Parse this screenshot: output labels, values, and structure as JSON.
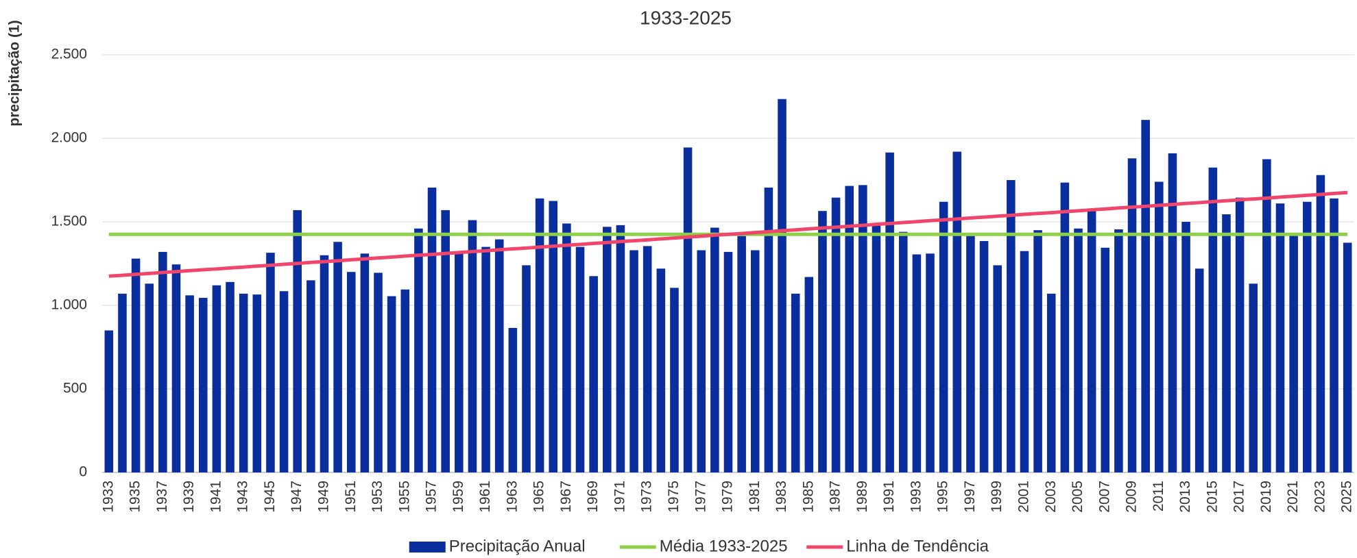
{
  "chart_data": {
    "type": "bar",
    "subtitle": "1933-2025",
    "y_label": "precipitação (1)",
    "categories": [
      "1933",
      null,
      "1935",
      null,
      "1937",
      null,
      "1939",
      null,
      "1941",
      null,
      "1943",
      null,
      "1945",
      null,
      "1947",
      null,
      "1949",
      null,
      "1951",
      null,
      "1953",
      null,
      "1955",
      null,
      "1957",
      null,
      "1959",
      null,
      "1961",
      null,
      "1963",
      null,
      "1965",
      null,
      "1967",
      null,
      "1969",
      null,
      "1971",
      null,
      "1973",
      null,
      "1975",
      null,
      "1977",
      null,
      "1979",
      null,
      "1981",
      null,
      "1983",
      null,
      "1985",
      null,
      "1987",
      null,
      "1989",
      null,
      "1991",
      null,
      "1993",
      null,
      "1995",
      null,
      "1997",
      null,
      "1999",
      null,
      "2001",
      null,
      "2003",
      null,
      "2005",
      null,
      "2007",
      null,
      "2009",
      null,
      "2011",
      null,
      "2013",
      null,
      "2015",
      null,
      "2017",
      null,
      "2019",
      null,
      "2021",
      null,
      "2023",
      null,
      "2025"
    ],
    "series": [
      {
        "name": "Precipitação Anual",
        "type": "bar",
        "color": "#0b2e9e",
        "values": [
          850,
          1070,
          1280,
          1130,
          1320,
          1245,
          1060,
          1045,
          1120,
          1140,
          1070,
          1065,
          1315,
          1085,
          1570,
          1150,
          1300,
          1380,
          1200,
          1310,
          1195,
          1055,
          1095,
          1460,
          1705,
          1570,
          1315,
          1510,
          1350,
          1395,
          865,
          1240,
          1640,
          1625,
          1490,
          1350,
          1175,
          1470,
          1480,
          1330,
          1355,
          1220,
          1105,
          1945,
          1330,
          1465,
          1320,
          1415,
          1330,
          1705,
          2235,
          1070,
          1170,
          1565,
          1645,
          1715,
          1720,
          1480,
          1915,
          1440,
          1305,
          1310,
          1620,
          1920,
          1415,
          1385,
          1240,
          1750,
          1325,
          1450,
          1070,
          1735,
          1460,
          1570,
          1345,
          1455,
          1880,
          2110,
          1740,
          1910,
          1500,
          1220,
          1825,
          1545,
          1645,
          1130,
          1875,
          1610,
          1430,
          1620,
          1780,
          1640,
          1375
        ]
      },
      {
        "name": "Média 1933-2025",
        "type": "line",
        "color": "#8dcf46",
        "values": [
          1425,
          1425,
          1425,
          1425,
          1425,
          1425,
          1425,
          1425,
          1425,
          1425,
          1425,
          1425,
          1425,
          1425,
          1425,
          1425,
          1425,
          1425,
          1425,
          1425,
          1425,
          1425,
          1425,
          1425,
          1425,
          1425,
          1425,
          1425,
          1425,
          1425,
          1425,
          1425,
          1425,
          1425,
          1425,
          1425,
          1425,
          1425,
          1425,
          1425,
          1425,
          1425,
          1425,
          1425,
          1425,
          1425,
          1425,
          1425,
          1425,
          1425,
          1425,
          1425,
          1425,
          1425,
          1425,
          1425,
          1425,
          1425,
          1425,
          1425,
          1425,
          1425,
          1425,
          1425,
          1425,
          1425,
          1425,
          1425,
          1425,
          1425,
          1425,
          1425,
          1425,
          1425,
          1425,
          1425,
          1425,
          1425,
          1425,
          1425,
          1425,
          1425,
          1425,
          1425,
          1425,
          1425,
          1425,
          1425,
          1425,
          1425,
          1425,
          1425,
          1425
        ]
      },
      {
        "name": "Linha de Tendência",
        "type": "line",
        "color": "#f0466b",
        "values": [
          1175,
          1180,
          1186,
          1191,
          1197,
          1202,
          1208,
          1213,
          1218,
          1224,
          1229,
          1235,
          1240,
          1246,
          1251,
          1257,
          1262,
          1267,
          1273,
          1278,
          1284,
          1289,
          1295,
          1300,
          1305,
          1311,
          1316,
          1322,
          1327,
          1333,
          1338,
          1343,
          1349,
          1354,
          1360,
          1365,
          1371,
          1376,
          1382,
          1387,
          1392,
          1398,
          1403,
          1409,
          1414,
          1420,
          1425,
          1430,
          1436,
          1441,
          1447,
          1452,
          1458,
          1463,
          1468,
          1474,
          1479,
          1485,
          1490,
          1496,
          1501,
          1507,
          1512,
          1517,
          1523,
          1528,
          1534,
          1539,
          1545,
          1550,
          1555,
          1561,
          1566,
          1572,
          1577,
          1583,
          1588,
          1593,
          1599,
          1604,
          1610,
          1615,
          1621,
          1626,
          1632,
          1637,
          1642,
          1648,
          1653,
          1659,
          1664,
          1670,
          1675
        ]
      }
    ],
    "ylim": [
      0,
      2500
    ],
    "yticks": [
      0,
      500,
      {
        "value": 1000,
        "label": "1.000"
      },
      {
        "value": 1500,
        "label": "1.500"
      },
      {
        "value": 2000,
        "label": "2.000"
      },
      {
        "value": 2500,
        "label": "2.500"
      }
    ],
    "grid": true,
    "legend": "bottom"
  }
}
